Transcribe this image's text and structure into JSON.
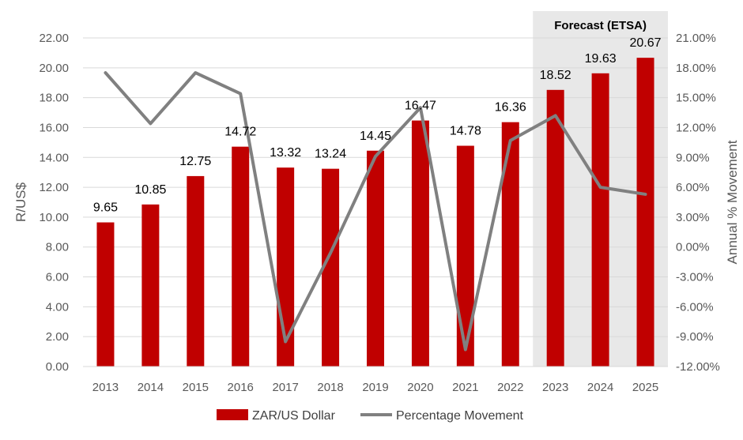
{
  "chart_data": {
    "type": "bar",
    "categories": [
      "2013",
      "2014",
      "2015",
      "2016",
      "2017",
      "2018",
      "2019",
      "2020",
      "2021",
      "2022",
      "2023",
      "2024",
      "2025"
    ],
    "series": [
      {
        "name": "ZAR/US Dollar",
        "kind": "bar",
        "axis": "left",
        "color": "#C00000",
        "values": [
          9.65,
          10.85,
          12.75,
          14.72,
          13.32,
          13.24,
          14.45,
          16.47,
          14.78,
          16.36,
          18.52,
          19.63,
          20.67
        ],
        "labels": [
          "9.65",
          "10.85",
          "12.75",
          "14.72",
          "13.32",
          "13.24",
          "14.45",
          "16.47",
          "14.78",
          "16.36",
          "18.52",
          "19.63",
          "20.67"
        ]
      },
      {
        "name": "Percentage Movement",
        "kind": "line",
        "axis": "right",
        "color": "#808080",
        "values": [
          17.5,
          12.4,
          17.5,
          15.4,
          -9.5,
          -0.6,
          9.1,
          14.0,
          -10.3,
          10.7,
          13.2,
          6.0,
          5.3
        ]
      }
    ],
    "ylabel": "R/US$",
    "y2label": "Annual % Movement",
    "ylim": [
      0,
      22
    ],
    "yticks": [
      "0.00",
      "2.00",
      "4.00",
      "6.00",
      "8.00",
      "10.00",
      "12.00",
      "14.00",
      "16.00",
      "18.00",
      "20.00",
      "22.00"
    ],
    "y2lim": [
      -12,
      21
    ],
    "y2ticks": [
      "-12.00%",
      "-9.00%",
      "-6.00%",
      "-3.00%",
      "0.00%",
      "3.00%",
      "6.00%",
      "9.00%",
      "12.00%",
      "15.00%",
      "18.00%",
      "21.00%"
    ],
    "forecast": {
      "label": "Forecast (ETSA)",
      "from": "2023",
      "to": "2025",
      "color": "#E8E8E8"
    },
    "legend_position": "bottom",
    "grid": true
  }
}
